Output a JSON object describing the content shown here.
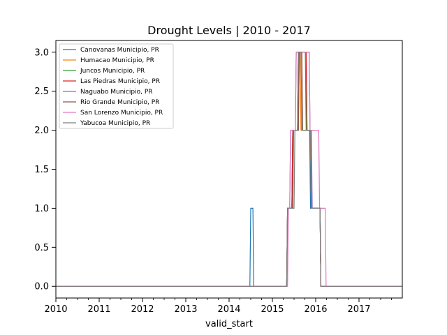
{
  "chart_data": {
    "type": "line",
    "title": "Drought Levels | 2010 - 2017",
    "xlabel": "valid_start",
    "ylabel": "",
    "xlim": [
      2010.0,
      2018.0
    ],
    "ylim": [
      -0.15,
      3.15
    ],
    "x_ticks": [
      2010,
      2011,
      2012,
      2013,
      2014,
      2015,
      2016,
      2017
    ],
    "x_tick_labels": [
      "2010",
      "2011",
      "2012",
      "2013",
      "2014",
      "2015",
      "2016",
      "2017"
    ],
    "y_ticks": [
      0.0,
      0.5,
      1.0,
      1.5,
      2.0,
      2.5,
      3.0
    ],
    "y_tick_labels": [
      "0.0",
      "0.5",
      "1.0",
      "1.5",
      "2.0",
      "2.5",
      "3.0"
    ],
    "grid": false,
    "legend_position": "top-left",
    "series": [
      {
        "name": "Canovanas Municipio, PR",
        "color": "#1f77b4",
        "x": [
          2010.0,
          2014.48,
          2014.5,
          2014.55,
          2014.57,
          2015.33,
          2015.35,
          2015.45,
          2015.47,
          2015.58,
          2015.6,
          2015.78,
          2015.8,
          2015.86,
          2015.88,
          2016.1,
          2016.12,
          2018.0
        ],
        "y": [
          0,
          0,
          1,
          1,
          0,
          0,
          1,
          1,
          2,
          2,
          3,
          3,
          2,
          2,
          1,
          1,
          0,
          0
        ]
      },
      {
        "name": "Humacao Municipio, PR",
        "color": "#ff7f0e",
        "x": [
          2010.0,
          2015.33,
          2015.35,
          2015.45,
          2015.47,
          2015.58,
          2015.6,
          2015.64,
          2015.66,
          2015.88,
          2015.9,
          2016.1,
          2016.12,
          2018.0
        ],
        "y": [
          0,
          0,
          1,
          1,
          2,
          2,
          3,
          3,
          2,
          2,
          1,
          1,
          0,
          0
        ]
      },
      {
        "name": "Juncos Municipio, PR",
        "color": "#2ca02c",
        "x": [
          2010.0,
          2015.33,
          2015.35,
          2015.45,
          2015.47,
          2015.6,
          2015.62,
          2015.76,
          2015.78,
          2015.88,
          2015.9,
          2016.1,
          2016.12,
          2018.0
        ],
        "y": [
          0,
          0,
          1,
          1,
          2,
          2,
          3,
          3,
          2,
          2,
          1,
          1,
          0,
          0
        ]
      },
      {
        "name": "Las Piedras Municipio, PR",
        "color": "#d62728",
        "x": [
          2010.0,
          2015.33,
          2015.35,
          2015.45,
          2015.47,
          2015.58,
          2015.6,
          2015.78,
          2015.8,
          2015.88,
          2015.9,
          2016.1,
          2016.12,
          2018.0
        ],
        "y": [
          0,
          0,
          1,
          1,
          2,
          2,
          3,
          3,
          2,
          2,
          1,
          1,
          0,
          0
        ]
      },
      {
        "name": "Naguabo Municipio, PR",
        "color": "#9467bd",
        "x": [
          2010.0,
          2015.33,
          2015.35,
          2015.4,
          2015.42,
          2015.53,
          2015.55,
          2015.85,
          2015.87,
          2015.9,
          2015.92,
          2016.1,
          2016.12,
          2018.0
        ],
        "y": [
          0,
          0,
          1,
          1,
          2,
          2,
          3,
          3,
          2,
          2,
          1,
          1,
          0,
          0
        ]
      },
      {
        "name": "Rio Grande Municipio, PR",
        "color": "#8c564b",
        "x": [
          2010.0,
          2015.33,
          2015.35,
          2015.47,
          2015.49,
          2015.6,
          2015.62,
          2015.68,
          2015.7,
          2015.88,
          2015.9,
          2016.1,
          2016.12,
          2018.0
        ],
        "y": [
          0,
          0,
          1,
          1,
          2,
          2,
          3,
          3,
          2,
          2,
          1,
          1,
          0,
          0
        ]
      },
      {
        "name": "San Lorenzo Municipio, PR",
        "color": "#e377c2",
        "x": [
          2010.0,
          2015.35,
          2015.37,
          2015.4,
          2015.42,
          2015.53,
          2015.55,
          2015.85,
          2015.87,
          2016.07,
          2016.09,
          2016.22,
          2016.24,
          2018.0
        ],
        "y": [
          0,
          0,
          1,
          1,
          2,
          2,
          3,
          3,
          2,
          2,
          1,
          1,
          0,
          0
        ]
      },
      {
        "name": "Yabucoa Municipio, PR",
        "color": "#7f7f7f",
        "x": [
          2010.0,
          2015.33,
          2015.35,
          2015.5,
          2015.52,
          2015.58,
          2015.6,
          2015.66,
          2015.68,
          2015.88,
          2015.9,
          2016.1,
          2016.12,
          2018.0
        ],
        "y": [
          0,
          0,
          1,
          1,
          2,
          2,
          3,
          3,
          2,
          2,
          1,
          1,
          0,
          0
        ]
      }
    ]
  }
}
